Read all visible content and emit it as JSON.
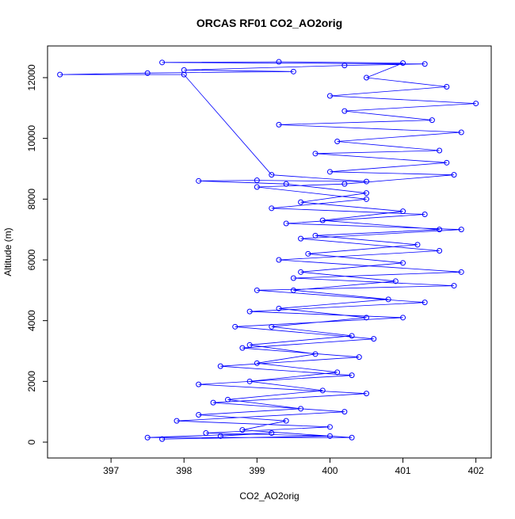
{
  "chart_data": {
    "type": "line",
    "title": "ORCAS RF01 CO2_AO2orig",
    "x_label": "CO2_AO2orig",
    "y_label": "Altitude (m)",
    "xlim": [
      396.13,
      402.21
    ],
    "ylim": [
      -522,
      13043
    ],
    "xticks": [
      397,
      398,
      399,
      400,
      401,
      402
    ],
    "yticks": [
      0,
      2000,
      4000,
      6000,
      8000,
      10000,
      12000
    ],
    "markers": true,
    "series": [
      {
        "color": "#0000ff",
        "x": [
          398.5,
          399.2,
          397.5,
          400.3,
          398.8,
          399.4,
          398.2,
          399.6,
          398.6,
          399.9,
          398.9,
          400.1,
          399.0,
          399.8,
          398.9,
          400.3,
          399.2,
          400.5,
          399.3,
          400.8,
          399.5,
          400.9,
          399.6,
          401.0,
          399.7,
          401.2,
          399.8,
          401.5,
          399.9,
          401.0,
          399.6,
          400.5,
          399.4,
          398.2,
          399.0,
          400.5,
          399.2,
          398.0,
          396.3,
          397.5,
          399.5,
          398.0,
          400.2,
          401.3,
          397.7,
          399.3,
          401.0,
          400.5,
          401.6,
          400.0,
          402.0,
          400.2,
          401.4,
          399.3,
          401.8,
          400.1,
          401.5,
          399.8,
          401.6,
          400.0,
          401.7,
          400.2,
          399.0,
          400.5,
          399.2,
          401.3,
          399.4,
          401.8,
          399.6,
          401.5,
          399.3,
          401.8,
          399.5,
          401.7,
          399.0,
          401.3,
          398.9,
          401.0,
          398.7,
          400.6,
          398.8,
          400.4,
          398.5,
          400.3,
          398.2,
          400.5,
          398.4,
          400.2,
          397.9,
          400.0,
          398.3,
          400.0,
          397.7
        ],
        "values": [
          200,
          300,
          150,
          150,
          400,
          700,
          900,
          1100,
          1400,
          1700,
          2000,
          2300,
          2600,
          2900,
          3200,
          3500,
          3800,
          4100,
          4400,
          4700,
          5000,
          5300,
          5600,
          5900,
          6200,
          6500,
          6800,
          7000,
          7300,
          7600,
          7900,
          8200,
          8500,
          8600,
          8620,
          8580,
          8800,
          12100,
          12100,
          12150,
          12200,
          12250,
          12400,
          12450,
          12500,
          12520,
          12480,
          12000,
          11700,
          11400,
          11150,
          10900,
          10600,
          10450,
          10200,
          9900,
          9600,
          9500,
          9200,
          8900,
          8800,
          8500,
          8400,
          8000,
          7700,
          7500,
          7200,
          7000,
          6700,
          6300,
          6000,
          5600,
          5400,
          5150,
          5000,
          4600,
          4300,
          4100,
          3800,
          3400,
          3100,
          2800,
          2500,
          2200,
          1900,
          1600,
          1300,
          1000,
          700,
          500,
          300,
          200,
          100
        ]
      }
    ]
  }
}
